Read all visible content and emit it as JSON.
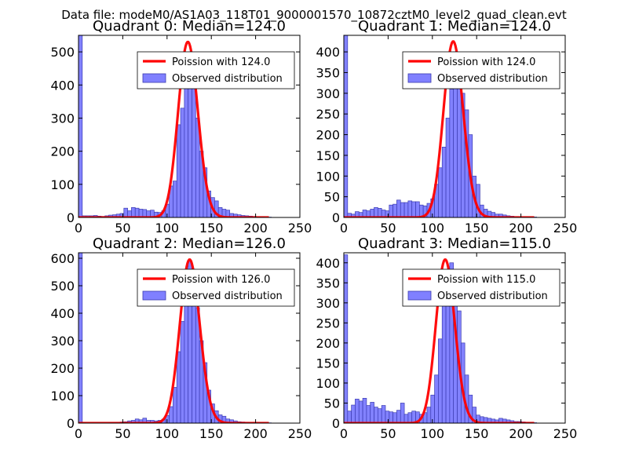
{
  "suptitle": "Data file: modeM0/AS1A03_118T01_9000001570_10872cztM0_level2_quad_clean.evt",
  "colors": {
    "poisson": "#ff0000",
    "bars": "#8080ff",
    "bar_edge": "#3b3bb0",
    "axes": "#000000"
  },
  "legend": {
    "poisson_label_prefix": "Poission with ",
    "observed_label": "Observed distribution"
  },
  "chart_data": [
    {
      "type": "bar",
      "title": "Quadrant 0: Median=124.0",
      "median": 124.0,
      "poisson_label": "Poission with 124.0",
      "xlim": [
        0,
        250
      ],
      "ylim": [
        0,
        550
      ],
      "xticks": [
        0,
        50,
        100,
        150,
        200,
        250
      ],
      "yticks": [
        0,
        100,
        200,
        300,
        400,
        500
      ],
      "bin_width": 4.27,
      "bins_x": [
        0,
        4.27,
        8.54,
        12.81,
        17.08,
        21.35,
        25.62,
        29.89,
        34.16,
        38.43,
        42.7,
        46.97,
        51.24,
        55.51,
        59.78,
        64.05,
        68.32,
        72.59,
        76.86,
        81.13,
        85.4,
        89.67,
        93.94,
        98.21,
        102.48,
        106.75,
        111.02,
        115.29,
        119.56,
        123.83,
        128.1,
        132.37,
        136.64,
        140.91,
        145.18,
        149.45,
        153.72,
        157.99,
        162.26,
        166.53,
        170.8,
        175.07,
        179.34,
        183.61,
        187.88,
        192.15,
        196.42,
        200.69,
        204.96,
        209.23,
        213.5
      ],
      "counts": [
        550,
        5,
        5,
        5,
        6,
        4,
        3,
        5,
        7,
        8,
        10,
        12,
        28,
        20,
        30,
        28,
        25,
        24,
        20,
        22,
        16,
        15,
        20,
        40,
        95,
        110,
        280,
        330,
        420,
        500,
        420,
        300,
        200,
        150,
        80,
        60,
        50,
        30,
        25,
        22,
        12,
        10,
        8,
        6,
        5,
        4,
        3,
        2,
        2,
        1,
        1
      ],
      "poisson_max": 530
    },
    {
      "type": "bar",
      "title": "Quadrant 1: Median=124.0",
      "median": 124.0,
      "poisson_label": "Poission with 124.0",
      "xlim": [
        0,
        250
      ],
      "ylim": [
        0,
        440
      ],
      "xticks": [
        0,
        50,
        100,
        150,
        200,
        250
      ],
      "yticks": [
        0,
        50,
        100,
        150,
        200,
        250,
        300,
        350,
        400
      ],
      "bin_width": 4.27,
      "bins_x": [
        0,
        4.27,
        8.54,
        12.81,
        17.08,
        21.35,
        25.62,
        29.89,
        34.16,
        38.43,
        42.7,
        46.97,
        51.24,
        55.51,
        59.78,
        64.05,
        68.32,
        72.59,
        76.86,
        81.13,
        85.4,
        89.67,
        93.94,
        98.21,
        102.48,
        106.75,
        111.02,
        115.29,
        119.56,
        123.83,
        128.1,
        132.37,
        136.64,
        140.91,
        145.18,
        149.45,
        153.72,
        157.99,
        162.26,
        166.53,
        170.8,
        175.07,
        179.34,
        183.61,
        187.88,
        192.15,
        196.42,
        200.69,
        204.96,
        209.23,
        213.5
      ],
      "counts": [
        440,
        10,
        8,
        14,
        12,
        18,
        16,
        20,
        24,
        22,
        18,
        16,
        30,
        32,
        42,
        36,
        36,
        40,
        38,
        38,
        30,
        28,
        34,
        45,
        80,
        120,
        170,
        240,
        310,
        400,
        330,
        300,
        260,
        200,
        100,
        80,
        30,
        20,
        15,
        12,
        8,
        8,
        6,
        4,
        3,
        2,
        2,
        1,
        1,
        1,
        1
      ],
      "poisson_max": 425
    },
    {
      "type": "bar",
      "title": "Quadrant 2: Median=126.0",
      "median": 126.0,
      "poisson_label": "Poission with 126.0",
      "xlim": [
        0,
        250
      ],
      "ylim": [
        0,
        620
      ],
      "xticks": [
        0,
        50,
        100,
        150,
        200,
        250
      ],
      "yticks": [
        0,
        100,
        200,
        300,
        400,
        500,
        600
      ],
      "bin_width": 4.27,
      "bins_x": [
        0,
        4.27,
        8.54,
        12.81,
        17.08,
        21.35,
        25.62,
        29.89,
        34.16,
        38.43,
        42.7,
        46.97,
        51.24,
        55.51,
        59.78,
        64.05,
        68.32,
        72.59,
        76.86,
        81.13,
        85.4,
        89.67,
        93.94,
        98.21,
        102.48,
        106.75,
        111.02,
        115.29,
        119.56,
        123.83,
        128.1,
        132.37,
        136.64,
        140.91,
        145.18,
        149.45,
        153.72,
        157.99,
        162.26,
        166.53,
        170.8,
        175.07,
        179.34,
        183.61,
        187.88,
        192.15,
        196.42,
        200.69,
        204.96,
        209.23,
        213.5
      ],
      "counts": [
        620,
        2,
        1,
        1,
        1,
        1,
        1,
        1,
        2,
        2,
        3,
        4,
        5,
        8,
        10,
        15,
        12,
        18,
        10,
        10,
        8,
        10,
        14,
        28,
        60,
        130,
        260,
        370,
        470,
        590,
        560,
        420,
        300,
        220,
        120,
        70,
        45,
        30,
        25,
        15,
        12,
        8,
        5,
        4,
        3,
        2,
        2,
        1,
        1,
        1,
        1
      ],
      "poisson_max": 595
    },
    {
      "type": "bar",
      "title": "Quadrant 3: Median=115.0",
      "median": 115.0,
      "poisson_label": "Poission with 115.0",
      "xlim": [
        0,
        250
      ],
      "ylim": [
        0,
        425
      ],
      "xticks": [
        0,
        50,
        100,
        150,
        200,
        250
      ],
      "yticks": [
        0,
        50,
        100,
        150,
        200,
        250,
        300,
        350,
        400
      ],
      "bin_width": 4.27,
      "bins_x": [
        0,
        4.27,
        8.54,
        12.81,
        17.08,
        21.35,
        25.62,
        29.89,
        34.16,
        38.43,
        42.7,
        46.97,
        51.24,
        55.51,
        59.78,
        64.05,
        68.32,
        72.59,
        76.86,
        81.13,
        85.4,
        89.67,
        93.94,
        98.21,
        102.48,
        106.75,
        111.02,
        115.29,
        119.56,
        123.83,
        128.1,
        132.37,
        136.64,
        140.91,
        145.18,
        149.45,
        153.72,
        157.99,
        162.26,
        166.53,
        170.8,
        175.07,
        179.34,
        183.61,
        187.88,
        192.15,
        196.42,
        200.69,
        204.96,
        209.23,
        213.5
      ],
      "counts": [
        420,
        30,
        45,
        60,
        55,
        62,
        44,
        52,
        40,
        36,
        44,
        30,
        28,
        26,
        32,
        50,
        22,
        26,
        30,
        28,
        22,
        26,
        40,
        70,
        120,
        210,
        310,
        380,
        400,
        340,
        280,
        200,
        120,
        70,
        40,
        20,
        16,
        14,
        12,
        10,
        8,
        12,
        10,
        8,
        6,
        4,
        4,
        3,
        2,
        1,
        1
      ],
      "poisson_max": 408
    }
  ]
}
